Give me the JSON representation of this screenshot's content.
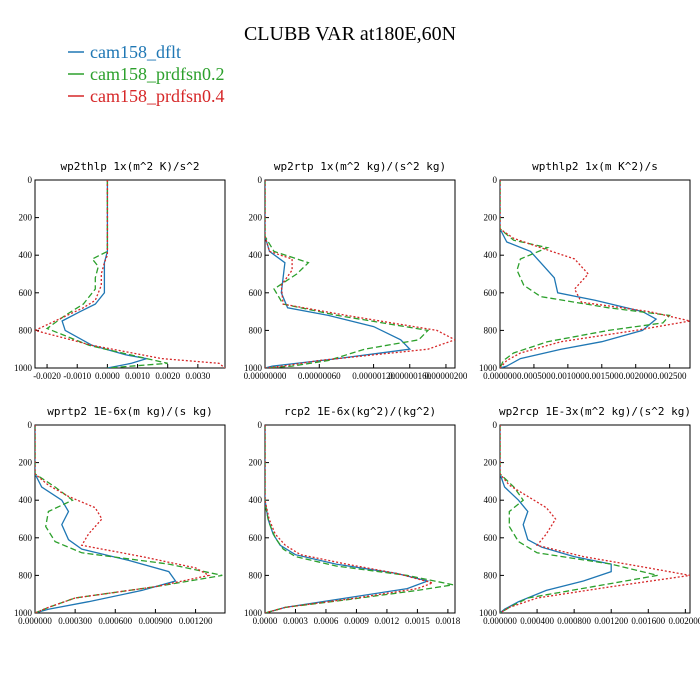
{
  "title": "CLUBB VAR at180E,60N",
  "legend": [
    {
      "name": "cam158_dflt",
      "color": "#1f77b4"
    },
    {
      "name": "cam158_prdfsn0.2",
      "color": "#2ca02c"
    },
    {
      "name": "cam158_prdfsn0.4",
      "color": "#d62728"
    }
  ],
  "chart_data": [
    {
      "type": "line",
      "title": "wp2thlp  1x(m^2 K)/s^2",
      "ylim": [
        1000,
        0
      ],
      "xlim": [
        -0.0024,
        0.0039
      ],
      "yticks": [
        "0",
        "200",
        "400",
        "600",
        "800",
        "1000"
      ],
      "xticks": [
        "-0.0020",
        "-0.0010",
        "0.0000",
        "0.0010",
        "0.0020",
        "0.0030"
      ],
      "xtick_values": [
        -0.002,
        -0.001,
        0.0,
        0.001,
        0.002,
        0.003
      ],
      "series": [
        {
          "name": "cam158_dflt",
          "color": "#1f77b4",
          "dash": "",
          "y": [
            0,
            380,
            440,
            520,
            600,
            660,
            700,
            750,
            800,
            880,
            930,
            950,
            975,
            1000
          ],
          "x": [
            0,
            0,
            -0.0001,
            -0.0001,
            -0.0001,
            -0.0004,
            -0.0009,
            -0.0015,
            -0.0014,
            -0.0005,
            0.0006,
            0.0013,
            0.0008,
            0
          ]
        },
        {
          "name": "cam158_prdfsn0.2",
          "color": "#2ca02c",
          "dash": "6,3",
          "y": [
            0,
            380,
            420,
            460,
            520,
            580,
            660,
            720,
            790,
            880,
            950,
            975,
            1000
          ],
          "x": [
            0,
            0,
            -0.0005,
            -0.0003,
            -0.0004,
            -0.0004,
            -0.0008,
            -0.0014,
            -0.002,
            -0.0006,
            0.0013,
            0.002,
            0
          ]
        },
        {
          "name": "cam158_prdfsn0.4",
          "color": "#d62728",
          "dash": "2,2",
          "y": [
            0,
            400,
            440,
            500,
            560,
            640,
            680,
            740,
            800,
            880,
            950,
            975,
            1000
          ],
          "x": [
            0,
            0,
            -0.0001,
            -0.0002,
            -0.0002,
            -0.0004,
            -0.0008,
            -0.0016,
            -0.0024,
            -0.0005,
            0.0018,
            0.0037,
            0.0039
          ]
        }
      ]
    },
    {
      "type": "line",
      "title": "wp2rtp  1x(m^2 kg)/(s^2 kg)",
      "ylim": [
        1000,
        0
      ],
      "xlim": [
        0,
        2.1e-06
      ],
      "yticks": [
        "0",
        "200",
        "400",
        "600",
        "800",
        "1000"
      ],
      "xticks": [
        "0.00000000",
        "0.00000060",
        "0.00000120",
        "0.00000160",
        "0.00000200"
      ],
      "xtick_values": [
        0,
        6e-07,
        1.2e-06,
        1.6e-06,
        2e-06
      ],
      "series": [
        {
          "name": "cam158_dflt",
          "color": "#1f77b4",
          "dash": "",
          "y": [
            0,
            300,
            380,
            440,
            520,
            600,
            680,
            720,
            780,
            850,
            900,
            950,
            990,
            1000
          ],
          "x": [
            0,
            0,
            5e-08,
            2.2e-07,
            2e-07,
            1.8e-07,
            2.5e-07,
            7e-07,
            1.2e-06,
            1.5e-06,
            1.6e-06,
            8e-07,
            8e-08,
            0
          ]
        },
        {
          "name": "cam158_prdfsn0.2",
          "color": "#2ca02c",
          "dash": "6,3",
          "y": [
            0,
            300,
            380,
            440,
            500,
            580,
            660,
            720,
            800,
            850,
            900,
            960,
            990,
            1000
          ],
          "x": [
            0,
            0,
            1e-07,
            4.8e-07,
            3.5e-07,
            1e-07,
            2e-07,
            8e-07,
            1.8e-06,
            1.7e-06,
            1.1e-06,
            7e-07,
            3e-07,
            0
          ]
        },
        {
          "name": "cam158_prdfsn0.4",
          "color": "#d62728",
          "dash": "2,2",
          "y": [
            0,
            300,
            380,
            420,
            480,
            560,
            660,
            720,
            800,
            850,
            900,
            960,
            990,
            1000
          ],
          "x": [
            0,
            0,
            5e-08,
            3e-07,
            3e-07,
            1.8e-07,
            2e-07,
            9e-07,
            1.9e-06,
            2.1e-06,
            1.8e-06,
            6e-07,
            2e-07,
            0
          ]
        }
      ]
    },
    {
      "type": "line",
      "title": "wpthlp2  1x(m K^2)/s",
      "ylim": [
        1000,
        0
      ],
      "xlim": [
        0,
        0.0028
      ],
      "yticks": [
        "0",
        "200",
        "400",
        "600",
        "800",
        "1000"
      ],
      "xticks": [
        "0.000000",
        "0.000500",
        "0.001000",
        "0.001500",
        "0.002000",
        "0.002500"
      ],
      "xtick_values": [
        0,
        0.0005,
        0.001,
        0.0015,
        0.002,
        0.0025
      ],
      "series": [
        {
          "name": "cam158_dflt",
          "color": "#1f77b4",
          "dash": "",
          "y": [
            0,
            260,
            330,
            380,
            440,
            520,
            600,
            640,
            700,
            740,
            800,
            860,
            900,
            950,
            990,
            1000
          ],
          "x": [
            0,
            0,
            0.0001,
            0.00045,
            0.0006,
            0.0008,
            0.00085,
            0.0014,
            0.0021,
            0.0023,
            0.0021,
            0.0015,
            0.0009,
            0.0003,
            0.0001,
            0
          ]
        },
        {
          "name": "cam158_prdfsn0.2",
          "color": "#2ca02c",
          "dash": "6,3",
          "y": [
            0,
            260,
            320,
            360,
            420,
            480,
            560,
            620,
            680,
            720,
            760,
            800,
            860,
            920,
            960,
            1000
          ],
          "x": [
            0,
            0,
            0.0002,
            0.0007,
            0.0003,
            0.00025,
            0.00035,
            0.0006,
            0.0016,
            0.0025,
            0.0024,
            0.0016,
            0.0007,
            0.0002,
            5e-05,
            0
          ]
        },
        {
          "name": "cam158_prdfsn0.4",
          "color": "#d62728",
          "dash": "2,2",
          "y": [
            0,
            260,
            310,
            360,
            420,
            500,
            580,
            650,
            700,
            750,
            800,
            860,
            920,
            960,
            1000
          ],
          "x": [
            0,
            0,
            0.0002,
            0.0006,
            0.0011,
            0.0013,
            0.0011,
            0.0012,
            0.0022,
            0.0028,
            0.002,
            0.0009,
            0.0003,
            0.0001,
            0
          ]
        }
      ]
    },
    {
      "type": "line",
      "title": "wprtp2  1E-6x(m kg)/(s kg)",
      "ylim": [
        1000,
        0
      ],
      "xlim": [
        0,
        0.00142
      ],
      "yticks": [
        "0",
        "200",
        "400",
        "600",
        "800",
        "1000"
      ],
      "xticks": [
        "0.000000",
        "0.000300",
        "0.000600",
        "0.000900",
        "0.001200"
      ],
      "xtick_values": [
        0,
        0.0003,
        0.0006,
        0.0009,
        0.0012
      ],
      "series": [
        {
          "name": "cam158_dflt",
          "color": "#1f77b4",
          "dash": "",
          "y": [
            0,
            260,
            330,
            400,
            460,
            530,
            610,
            660,
            720,
            780,
            830,
            880,
            940,
            980,
            1000
          ],
          "x": [
            0,
            0,
            5e-05,
            0.0002,
            0.00025,
            0.0002,
            0.00025,
            0.00035,
            0.0007,
            0.001,
            0.00105,
            0.0008,
            0.0004,
            0.0001,
            0
          ]
        },
        {
          "name": "cam158_prdfsn0.2",
          "color": "#2ca02c",
          "dash": "6,3",
          "y": [
            0,
            260,
            330,
            400,
            460,
            540,
            620,
            680,
            740,
            800,
            860,
            920,
            970,
            1000
          ],
          "x": [
            0,
            0,
            0.00015,
            0.00028,
            0.0001,
            8e-05,
            0.00015,
            0.00035,
            0.001,
            0.0014,
            0.0009,
            0.0003,
            0.0001,
            0
          ]
        },
        {
          "name": "cam158_prdfsn0.4",
          "color": "#d62728",
          "dash": "2,2",
          "y": [
            0,
            260,
            320,
            380,
            440,
            500,
            580,
            640,
            700,
            760,
            800,
            860,
            920,
            970,
            1000
          ],
          "x": [
            0,
            0,
            0.0001,
            0.00025,
            0.00045,
            0.0005,
            0.0004,
            0.00035,
            0.0008,
            0.0012,
            0.0013,
            0.0009,
            0.0003,
            0.0001,
            0
          ]
        }
      ]
    },
    {
      "type": "line",
      "title": "rcp2  1E-6x(kg^2)/(kg^2)",
      "ylim": [
        1000,
        0
      ],
      "xlim": [
        0,
        0.00187
      ],
      "yticks": [
        "0",
        "200",
        "400",
        "600",
        "800",
        "1000"
      ],
      "xticks": [
        "0.0000",
        "0.0003",
        "0.0006",
        "0.0009",
        "0.0012",
        "0.0015",
        "0.0018"
      ],
      "xtick_values": [
        0,
        0.0003,
        0.0006,
        0.0009,
        0.0012,
        0.0015,
        0.0018
      ],
      "series": [
        {
          "name": "cam158_dflt",
          "color": "#1f77b4",
          "dash": "",
          "y": [
            0,
            400,
            500,
            580,
            640,
            690,
            740,
            790,
            830,
            870,
            920,
            970,
            1000
          ],
          "x": [
            0,
            0,
            3e-05,
            8e-05,
            0.00015,
            0.0003,
            0.0007,
            0.0013,
            0.0016,
            0.0014,
            0.0008,
            0.0002,
            0
          ]
        },
        {
          "name": "cam158_prdfsn0.2",
          "color": "#2ca02c",
          "dash": "6,3",
          "y": [
            0,
            420,
            520,
            600,
            660,
            700,
            750,
            800,
            850,
            880,
            930,
            970,
            1000
          ],
          "x": [
            0,
            0,
            4e-05,
            0.0001,
            0.00018,
            0.0003,
            0.0007,
            0.0014,
            0.00185,
            0.0015,
            0.0008,
            0.0002,
            0
          ]
        },
        {
          "name": "cam158_prdfsn0.4",
          "color": "#d62728",
          "dash": "2,2",
          "y": [
            0,
            400,
            500,
            580,
            640,
            690,
            740,
            790,
            840,
            870,
            920,
            970,
            1000
          ],
          "x": [
            0,
            0,
            4e-05,
            0.0001,
            0.0002,
            0.00035,
            0.0008,
            0.0013,
            0.00165,
            0.0015,
            0.0009,
            0.0002,
            0
          ]
        }
      ]
    },
    {
      "type": "line",
      "title": "wp2rcp  1E-3x(m^2 kg)/(s^2 kg)",
      "ylim": [
        1000,
        0
      ],
      "xlim": [
        0,
        0.00205
      ],
      "yticks": [
        "0",
        "200",
        "400",
        "600",
        "800",
        "1000"
      ],
      "xticks": [
        "0.000000",
        "0.000400",
        "0.000800",
        "0.001200",
        "0.001600",
        "0.002000"
      ],
      "xtick_values": [
        0,
        0.0004,
        0.0008,
        0.0012,
        0.0016,
        0.002
      ],
      "series": [
        {
          "name": "cam158_dflt",
          "color": "#1f77b4",
          "dash": "",
          "y": [
            0,
            260,
            330,
            400,
            460,
            530,
            610,
            650,
            700,
            740,
            780,
            830,
            880,
            940,
            980,
            1000
          ],
          "x": [
            0,
            0,
            5e-05,
            0.0002,
            0.0003,
            0.00025,
            0.0003,
            0.00045,
            0.0008,
            0.0012,
            0.0012,
            0.0009,
            0.0005,
            0.0002,
            5e-05,
            0
          ]
        },
        {
          "name": "cam158_prdfsn0.2",
          "color": "#2ca02c",
          "dash": "6,3",
          "y": [
            0,
            260,
            330,
            400,
            460,
            540,
            620,
            680,
            740,
            800,
            860,
            920,
            970,
            1000
          ],
          "x": [
            0,
            0,
            0.00015,
            0.00025,
            0.0001,
            0.0001,
            0.0002,
            0.0004,
            0.0012,
            0.0017,
            0.001,
            0.0003,
            0.0001,
            0
          ]
        },
        {
          "name": "cam158_prdfsn0.4",
          "color": "#d62728",
          "dash": "2,2",
          "y": [
            0,
            260,
            320,
            380,
            440,
            500,
            580,
            640,
            700,
            760,
            800,
            860,
            920,
            970,
            1000
          ],
          "x": [
            0,
            0,
            0.0001,
            0.0003,
            0.0005,
            0.0006,
            0.0005,
            0.0004,
            0.0009,
            0.0016,
            0.00205,
            0.0012,
            0.0004,
            0.0001,
            0
          ]
        }
      ]
    }
  ]
}
